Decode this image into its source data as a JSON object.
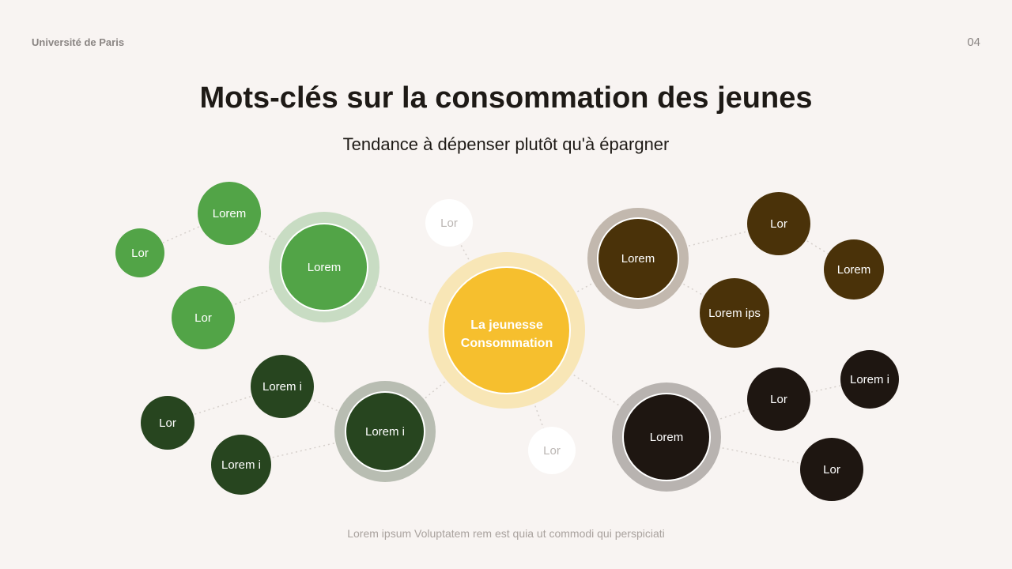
{
  "header": {
    "organization": "Université de Paris",
    "page_number": "04"
  },
  "title": "Mots-clés sur la consommation des jeunes",
  "subtitle": "Tendance à dépenser plutôt qu'à épargner",
  "footer": "Lorem ipsum Voluptatem rem est quia ut commodi qui perspiciati",
  "colors": {
    "center": "#F6BF2E",
    "green": "#52A447",
    "dark_green": "#27451F",
    "brown": "#4A3209",
    "black": "#1E1611",
    "white": "#FFFFFF"
  },
  "diagram": {
    "center": {
      "line1": "La jeunesse",
      "line2": "Consommation"
    },
    "nodes": [
      {
        "label": "Lorem",
        "group": "green",
        "main": true
      },
      {
        "label": "Lorem",
        "group": "green"
      },
      {
        "label": "Lor",
        "group": "green"
      },
      {
        "label": "Lor",
        "group": "green"
      },
      {
        "label": "Lorem i",
        "group": "dark_green",
        "main": true
      },
      {
        "label": "Lorem i",
        "group": "dark_green"
      },
      {
        "label": "Lor",
        "group": "dark_green"
      },
      {
        "label": "Lorem i",
        "group": "dark_green"
      },
      {
        "label": "Lorem",
        "group": "brown",
        "main": true
      },
      {
        "label": "Lor",
        "group": "brown"
      },
      {
        "label": "Lorem",
        "group": "brown"
      },
      {
        "label": "Lorem ips",
        "group": "brown"
      },
      {
        "label": "Lorem",
        "group": "black",
        "main": true
      },
      {
        "label": "Lor",
        "group": "black"
      },
      {
        "label": "Lorem i",
        "group": "black"
      },
      {
        "label": "Lor",
        "group": "black"
      },
      {
        "label": "Lor",
        "group": "white"
      },
      {
        "label": "Lor",
        "group": "white"
      }
    ]
  }
}
